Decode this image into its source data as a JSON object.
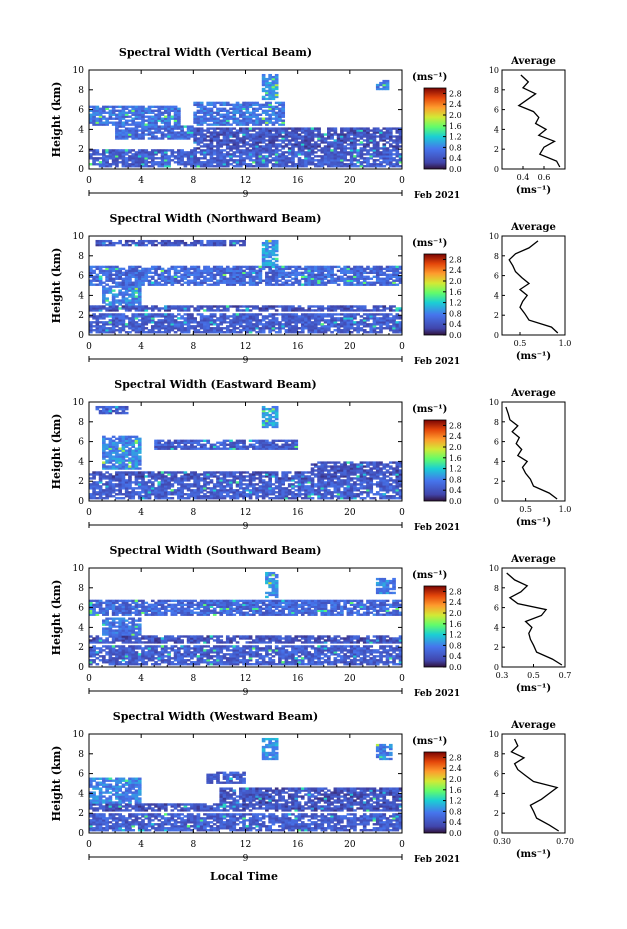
{
  "figure": {
    "x_axis_title": "Local Time",
    "date_label": "Feb 2021",
    "day_label": "9",
    "height_label": "Height (km)",
    "cbar_unit": "(ms⁻¹)",
    "avg_title": "Average",
    "avg_unit": "(ms⁻¹)"
  },
  "chart_data": [
    {
      "type": "heatmap",
      "title": "Spectral Width (Vertical Beam)",
      "xlabel": "Local Time",
      "ylabel": "Height (km)",
      "xlim": [
        0,
        24
      ],
      "ylim": [
        0,
        10
      ],
      "x_ticks": [
        "0",
        "4",
        "8",
        "12",
        "16",
        "20",
        "0"
      ],
      "y_ticks": [
        "0",
        "2",
        "4",
        "6",
        "8",
        "10"
      ],
      "colorbar": {
        "range": [
          0,
          3.0
        ],
        "ticks": [
          "0.0",
          "0.4",
          "0.8",
          "1.2",
          "1.6",
          "2.0",
          "2.4",
          "2.8"
        ]
      },
      "coverage": [
        {
          "x": [
            0,
            24
          ],
          "y": [
            0.2,
            2.0
          ],
          "v": 0.5
        },
        {
          "x": [
            2,
            8
          ],
          "y": [
            3.0,
            4.3
          ],
          "v": 0.6
        },
        {
          "x": [
            0,
            7
          ],
          "y": [
            4.5,
            6.3
          ],
          "v": 0.7
        },
        {
          "x": [
            8,
            24
          ],
          "y": [
            2.0,
            4.2
          ],
          "v": 0.4
        },
        {
          "x": [
            8,
            15
          ],
          "y": [
            4.5,
            6.8
          ],
          "v": 0.7
        },
        {
          "x": [
            13.2,
            14.5
          ],
          "y": [
            7.0,
            9.6
          ],
          "v": 0.9
        },
        {
          "x": [
            22,
            23
          ],
          "y": [
            8.0,
            9.0
          ],
          "v": 0.8
        }
      ],
      "average": {
        "xlim": [
          0.2,
          0.8
        ],
        "x_ticks": [
          "0.4",
          "0.6"
        ],
        "heights": [
          0.2,
          0.8,
          1.5,
          2.2,
          2.8,
          3.4,
          4.0,
          4.6,
          5.2,
          5.8,
          6.4,
          7.0,
          7.6,
          8.2,
          8.8,
          9.5
        ],
        "values": [
          0.75,
          0.72,
          0.56,
          0.6,
          0.7,
          0.55,
          0.62,
          0.52,
          0.55,
          0.5,
          0.36,
          0.44,
          0.52,
          0.4,
          0.45,
          0.38
        ]
      }
    },
    {
      "type": "heatmap",
      "title": "Spectral Width (Northward Beam)",
      "xlabel": "Local Time",
      "ylabel": "Height (km)",
      "xlim": [
        0,
        24
      ],
      "ylim": [
        0,
        10
      ],
      "x_ticks": [
        "0",
        "4",
        "8",
        "12",
        "16",
        "20",
        "0"
      ],
      "y_ticks": [
        "0",
        "2",
        "4",
        "6",
        "8",
        "10"
      ],
      "colorbar": {
        "range": [
          0,
          3.0
        ],
        "ticks": [
          "0.0",
          "0.4",
          "0.8",
          "1.2",
          "1.6",
          "2.0",
          "2.4",
          "2.8"
        ]
      },
      "coverage": [
        {
          "x": [
            0,
            24
          ],
          "y": [
            0.2,
            2.2
          ],
          "v": 0.5
        },
        {
          "x": [
            0,
            24
          ],
          "y": [
            2.4,
            3.0
          ],
          "v": 0.4
        },
        {
          "x": [
            1,
            4
          ],
          "y": [
            3.0,
            5.0
          ],
          "v": 0.8
        },
        {
          "x": [
            0,
            24
          ],
          "y": [
            5.0,
            7.0
          ],
          "v": 0.6
        },
        {
          "x": [
            13.3,
            14.6
          ],
          "y": [
            7.0,
            9.5
          ],
          "v": 0.9
        },
        {
          "x": [
            0.5,
            12
          ],
          "y": [
            9.0,
            9.6
          ],
          "v": 0.4
        }
      ],
      "average": {
        "xlim": [
          0.3,
          1.0
        ],
        "x_ticks": [
          "0.5",
          "1.0"
        ],
        "heights": [
          0.2,
          0.8,
          1.5,
          2.2,
          2.8,
          3.4,
          4.0,
          4.6,
          5.2,
          5.8,
          6.4,
          7.0,
          7.6,
          8.2,
          8.8,
          9.5
        ],
        "values": [
          0.92,
          0.85,
          0.6,
          0.55,
          0.5,
          0.53,
          0.58,
          0.5,
          0.6,
          0.52,
          0.45,
          0.42,
          0.38,
          0.45,
          0.6,
          0.7
        ]
      }
    },
    {
      "type": "heatmap",
      "title": "Spectral Width (Eastward Beam)",
      "xlabel": "Local Time",
      "ylabel": "Height (km)",
      "xlim": [
        0,
        24
      ],
      "ylim": [
        0,
        10
      ],
      "x_ticks": [
        "0",
        "4",
        "8",
        "12",
        "16",
        "20",
        "0"
      ],
      "y_ticks": [
        "0",
        "2",
        "4",
        "6",
        "8",
        "10"
      ],
      "colorbar": {
        "range": [
          0,
          3.0
        ],
        "ticks": [
          "0.0",
          "0.4",
          "0.8",
          "1.2",
          "1.6",
          "2.0",
          "2.4",
          "2.8"
        ]
      },
      "coverage": [
        {
          "x": [
            0,
            24
          ],
          "y": [
            0.2,
            2.2
          ],
          "v": 0.5
        },
        {
          "x": [
            0,
            24
          ],
          "y": [
            2.3,
            3.0
          ],
          "v": 0.4
        },
        {
          "x": [
            1,
            4
          ],
          "y": [
            3.2,
            6.5
          ],
          "v": 0.8
        },
        {
          "x": [
            5,
            16
          ],
          "y": [
            5.2,
            6.2
          ],
          "v": 0.5
        },
        {
          "x": [
            17,
            24
          ],
          "y": [
            3.0,
            4.0
          ],
          "v": 0.4
        },
        {
          "x": [
            13.3,
            14.5
          ],
          "y": [
            7.5,
            9.6
          ],
          "v": 0.9
        },
        {
          "x": [
            0.5,
            3
          ],
          "y": [
            8.8,
            9.5
          ],
          "v": 0.5
        }
      ],
      "average": {
        "xlim": [
          0.2,
          1.0
        ],
        "x_ticks": [
          "0.5",
          "1.0"
        ],
        "heights": [
          0.2,
          0.8,
          1.5,
          2.2,
          2.8,
          3.4,
          4.0,
          4.6,
          5.2,
          5.8,
          6.4,
          7.0,
          7.6,
          8.2,
          8.8,
          9.5
        ],
        "values": [
          0.9,
          0.8,
          0.6,
          0.56,
          0.5,
          0.46,
          0.52,
          0.4,
          0.45,
          0.38,
          0.42,
          0.33,
          0.4,
          0.3,
          0.28,
          0.25
        ]
      }
    },
    {
      "type": "heatmap",
      "title": "Spectral Width (Southward Beam)",
      "xlabel": "Local Time",
      "ylabel": "Height (km)",
      "xlim": [
        0,
        24
      ],
      "ylim": [
        0,
        10
      ],
      "x_ticks": [
        "0",
        "4",
        "8",
        "12",
        "16",
        "20",
        "0"
      ],
      "y_ticks": [
        "0",
        "2",
        "4",
        "6",
        "8",
        "10"
      ],
      "colorbar": {
        "range": [
          0,
          3.0
        ],
        "ticks": [
          "0.0",
          "0.4",
          "0.8",
          "1.2",
          "1.6",
          "2.0",
          "2.4",
          "2.8"
        ]
      },
      "coverage": [
        {
          "x": [
            0,
            24
          ],
          "y": [
            0.2,
            2.2
          ],
          "v": 0.5
        },
        {
          "x": [
            0,
            24
          ],
          "y": [
            2.4,
            3.2
          ],
          "v": 0.4
        },
        {
          "x": [
            1,
            4
          ],
          "y": [
            3.2,
            5.0
          ],
          "v": 0.7
        },
        {
          "x": [
            0,
            24
          ],
          "y": [
            5.2,
            6.8
          ],
          "v": 0.6
        },
        {
          "x": [
            13.4,
            14.5
          ],
          "y": [
            7.0,
            9.6
          ],
          "v": 0.9
        },
        {
          "x": [
            22,
            23.5
          ],
          "y": [
            7.5,
            9.0
          ],
          "v": 0.8
        }
      ],
      "average": {
        "xlim": [
          0.3,
          0.7
        ],
        "x_ticks": [
          "0.3",
          "0.5",
          "0.7"
        ],
        "heights": [
          0.2,
          0.8,
          1.5,
          2.2,
          2.8,
          3.4,
          4.0,
          4.6,
          5.2,
          5.8,
          6.4,
          7.0,
          7.6,
          8.2,
          8.8,
          9.5
        ],
        "values": [
          0.68,
          0.62,
          0.52,
          0.5,
          0.48,
          0.47,
          0.49,
          0.45,
          0.55,
          0.58,
          0.4,
          0.35,
          0.42,
          0.46,
          0.38,
          0.33
        ]
      }
    },
    {
      "type": "heatmap",
      "title": "Spectral Width (Westward Beam)",
      "xlabel": "Local Time",
      "ylabel": "Height (km)",
      "xlim": [
        0,
        24
      ],
      "ylim": [
        0,
        10
      ],
      "x_ticks": [
        "0",
        "4",
        "8",
        "12",
        "16",
        "20",
        "0"
      ],
      "y_ticks": [
        "0",
        "2",
        "4",
        "6",
        "8",
        "10"
      ],
      "colorbar": {
        "range": [
          0,
          3.0
        ],
        "ticks": [
          "0.0",
          "0.4",
          "0.8",
          "1.2",
          "1.6",
          "2.0",
          "2.4",
          "2.8"
        ]
      },
      "coverage": [
        {
          "x": [
            0,
            24
          ],
          "y": [
            0.2,
            2.0
          ],
          "v": 0.5
        },
        {
          "x": [
            0,
            24
          ],
          "y": [
            2.2,
            3.0
          ],
          "v": 0.4
        },
        {
          "x": [
            0,
            4
          ],
          "y": [
            3.0,
            5.5
          ],
          "v": 0.8
        },
        {
          "x": [
            10,
            24
          ],
          "y": [
            3.0,
            4.5
          ],
          "v": 0.4
        },
        {
          "x": [
            9,
            12
          ],
          "y": [
            5.0,
            6.2
          ],
          "v": 0.5
        },
        {
          "x": [
            13.2,
            14.5
          ],
          "y": [
            7.5,
            9.6
          ],
          "v": 0.9
        },
        {
          "x": [
            22,
            23.2
          ],
          "y": [
            7.5,
            9.0
          ],
          "v": 0.8
        }
      ],
      "average": {
        "xlim": [
          0.3,
          0.7
        ],
        "x_ticks": [
          "0.30",
          "0.70"
        ],
        "heights": [
          0.2,
          0.8,
          1.5,
          2.2,
          2.8,
          3.4,
          4.0,
          4.6,
          5.2,
          5.8,
          6.4,
          7.0,
          7.6,
          8.2,
          8.8,
          9.5
        ],
        "values": [
          0.66,
          0.6,
          0.52,
          0.5,
          0.48,
          0.55,
          0.6,
          0.65,
          0.5,
          0.45,
          0.4,
          0.38,
          0.44,
          0.36,
          0.4,
          0.38
        ]
      }
    }
  ]
}
